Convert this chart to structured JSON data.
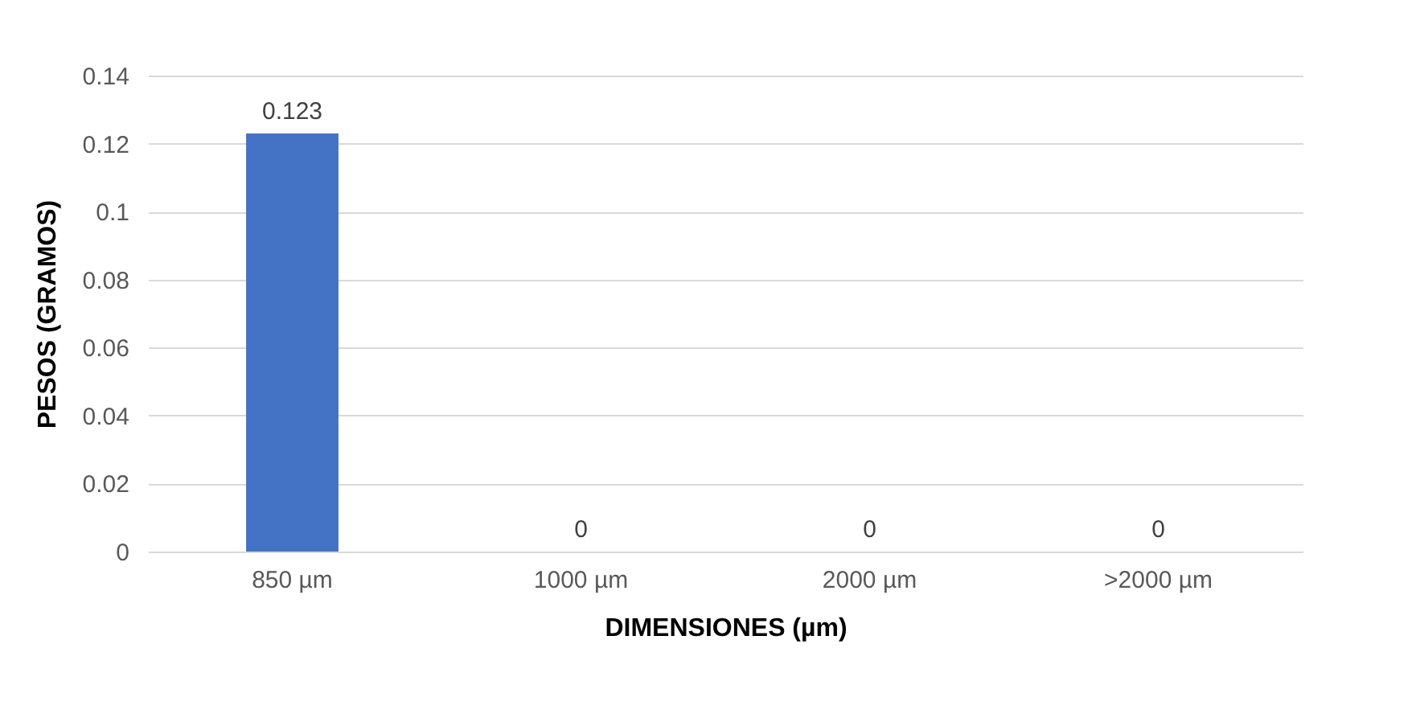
{
  "chart_data": {
    "type": "bar",
    "xlabel": "DIMENSIONES (µm)",
    "ylabel": "PESOS (GRAMOS)",
    "categories": [
      "850 µm",
      "1000 µm",
      "2000 µm",
      ">2000 µm"
    ],
    "values": [
      0.123,
      0,
      0,
      0
    ],
    "color": "#4472c4",
    "ylim": [
      0,
      0.14
    ],
    "yticks": [
      0,
      0.02,
      0.04,
      0.06,
      0.08,
      0.1,
      0.12,
      0.14
    ],
    "grid": "y",
    "data_labels": true
  }
}
